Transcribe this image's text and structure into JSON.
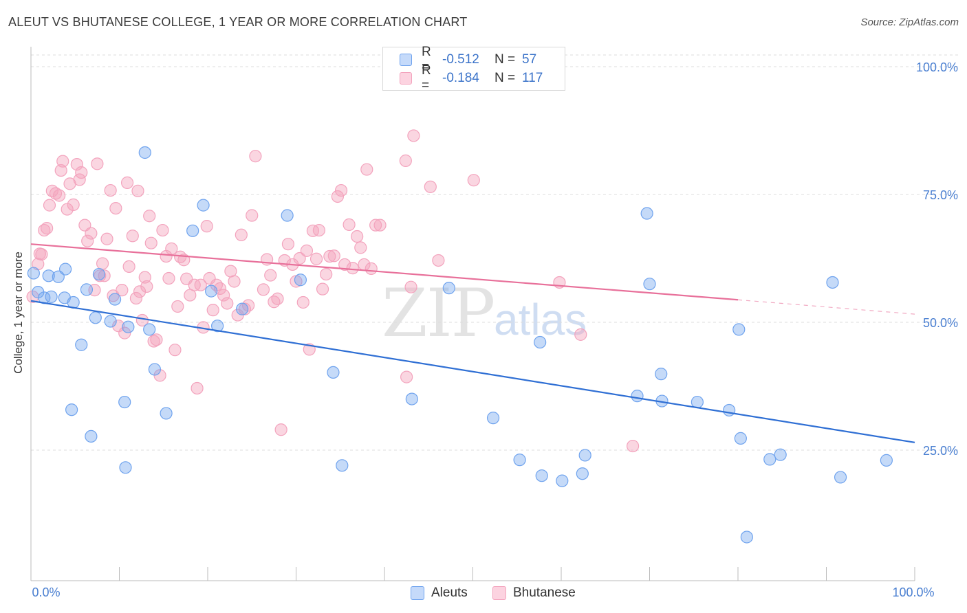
{
  "title": "ALEUT VS BHUTANESE COLLEGE, 1 YEAR OR MORE CORRELATION CHART",
  "source": "Source: ZipAtlas.com",
  "watermark_main": "ZIP",
  "watermark_sub": "atlas",
  "legend": {
    "rows": [
      {
        "r_label": "R =",
        "r_value": "-0.512",
        "n_label": "N =",
        "n_value": "57",
        "color": "#7aaaf0"
      },
      {
        "r_label": "R =",
        "r_value": "-0.184",
        "n_label": "N =",
        "n_value": "117",
        "color": "#f4a0bb"
      }
    ]
  },
  "bottom_legend": [
    {
      "label": "Aleuts",
      "color": "#7aaaf0"
    },
    {
      "label": "Bhutanese",
      "color": "#f4a0bb"
    }
  ],
  "chart_data": {
    "type": "scatter",
    "title": "ALEUT VS BHUTANESE COLLEGE, 1 YEAR OR MORE CORRELATION CHART",
    "xlabel": "",
    "ylabel": "College, 1 year or more",
    "xlim": [
      0,
      100
    ],
    "ylim": [
      0,
      105
    ],
    "x_tick_labels": [
      "0.0%",
      "100.0%"
    ],
    "y_ticks": [
      25,
      50,
      75,
      100
    ],
    "y_tick_labels": [
      "25.0%",
      "50.0%",
      "75.0%",
      "100.0%"
    ],
    "grid": true,
    "legend_position": "top-center",
    "colors": {
      "aleuts": "#6fa3ee",
      "bhutanese": "#f3a3bd",
      "aleuts_line": "#2f6fd4",
      "bhutanese_line": "#e8709a"
    },
    "series": [
      {
        "name": "Aleuts",
        "trend": {
          "x0": 0,
          "y0": 54.2,
          "x1": 100,
          "y1": 26.5
        },
        "points": [
          [
            0.3,
            59.6
          ],
          [
            0.8,
            55.9
          ],
          [
            1.5,
            54.8
          ],
          [
            2.0,
            59.1
          ],
          [
            2.3,
            55.0
          ],
          [
            3.1,
            58.9
          ],
          [
            3.8,
            54.8
          ],
          [
            3.9,
            60.4
          ],
          [
            4.6,
            32.9
          ],
          [
            4.8,
            53.9
          ],
          [
            5.7,
            45.6
          ],
          [
            6.3,
            56.4
          ],
          [
            6.8,
            27.7
          ],
          [
            7.3,
            50.9
          ],
          [
            7.7,
            59.4
          ],
          [
            9.0,
            50.2
          ],
          [
            9.5,
            54.5
          ],
          [
            10.6,
            34.4
          ],
          [
            10.7,
            21.6
          ],
          [
            11.0,
            49.1
          ],
          [
            12.9,
            83.2
          ],
          [
            13.4,
            48.6
          ],
          [
            14.0,
            40.8
          ],
          [
            15.3,
            32.2
          ],
          [
            18.3,
            67.9
          ],
          [
            19.5,
            72.9
          ],
          [
            20.4,
            56.1
          ],
          [
            21.1,
            49.3
          ],
          [
            23.9,
            52.6
          ],
          [
            29.0,
            70.9
          ],
          [
            30.5,
            58.3
          ],
          [
            34.2,
            40.2
          ],
          [
            35.2,
            22.0
          ],
          [
            43.1,
            35.0
          ],
          [
            47.3,
            56.7
          ],
          [
            52.3,
            31.3
          ],
          [
            55.3,
            23.1
          ],
          [
            57.6,
            46.1
          ],
          [
            57.8,
            20.0
          ],
          [
            60.1,
            19.0
          ],
          [
            62.4,
            20.4
          ],
          [
            62.7,
            24.0
          ],
          [
            68.6,
            35.6
          ],
          [
            69.7,
            71.3
          ],
          [
            70.0,
            57.5
          ],
          [
            71.3,
            39.9
          ],
          [
            71.4,
            34.6
          ],
          [
            75.4,
            34.4
          ],
          [
            79.0,
            32.8
          ],
          [
            80.1,
            48.6
          ],
          [
            80.3,
            27.3
          ],
          [
            81.0,
            8.0
          ],
          [
            83.6,
            23.2
          ],
          [
            84.8,
            24.1
          ],
          [
            90.7,
            57.8
          ],
          [
            91.6,
            19.7
          ],
          [
            96.8,
            23.0
          ]
        ]
      },
      {
        "name": "Bhutanese",
        "trend": {
          "x0": 0,
          "y0": 65.3,
          "x1": 80,
          "y1": 54.4,
          "dash_x1": 100,
          "dash_y1": 51.6
        },
        "points": [
          [
            0.2,
            55.0
          ],
          [
            0.8,
            61.4
          ],
          [
            1.0,
            63.4
          ],
          [
            1.2,
            63.3
          ],
          [
            1.5,
            68.0
          ],
          [
            1.8,
            68.4
          ],
          [
            2.1,
            72.9
          ],
          [
            2.4,
            75.7
          ],
          [
            2.8,
            75.2
          ],
          [
            3.2,
            74.8
          ],
          [
            3.4,
            79.7
          ],
          [
            3.6,
            81.5
          ],
          [
            4.1,
            72.1
          ],
          [
            4.4,
            77.1
          ],
          [
            4.8,
            73.0
          ],
          [
            5.2,
            80.9
          ],
          [
            5.5,
            77.9
          ],
          [
            5.7,
            79.3
          ],
          [
            6.1,
            69.0
          ],
          [
            6.4,
            65.9
          ],
          [
            6.8,
            67.4
          ],
          [
            7.2,
            56.3
          ],
          [
            7.5,
            81.0
          ],
          [
            7.8,
            59.1
          ],
          [
            8.1,
            61.5
          ],
          [
            8.3,
            59.1
          ],
          [
            8.6,
            66.3
          ],
          [
            9.0,
            75.8
          ],
          [
            9.3,
            55.2
          ],
          [
            9.6,
            72.3
          ],
          [
            9.9,
            49.3
          ],
          [
            10.3,
            56.3
          ],
          [
            10.6,
            47.9
          ],
          [
            10.9,
            77.3
          ],
          [
            11.1,
            60.9
          ],
          [
            11.5,
            66.9
          ],
          [
            11.9,
            54.7
          ],
          [
            12.1,
            75.7
          ],
          [
            12.3,
            56.0
          ],
          [
            12.6,
            50.4
          ],
          [
            12.9,
            58.8
          ],
          [
            13.1,
            57.0
          ],
          [
            13.4,
            70.8
          ],
          [
            13.6,
            65.5
          ],
          [
            13.9,
            46.3
          ],
          [
            14.2,
            46.6
          ],
          [
            14.6,
            39.6
          ],
          [
            14.9,
            68.0
          ],
          [
            15.3,
            62.9
          ],
          [
            15.6,
            58.6
          ],
          [
            15.9,
            64.4
          ],
          [
            16.3,
            44.6
          ],
          [
            16.6,
            53.1
          ],
          [
            16.9,
            62.8
          ],
          [
            17.3,
            62.2
          ],
          [
            17.6,
            58.5
          ],
          [
            18.0,
            55.3
          ],
          [
            18.5,
            57.3
          ],
          [
            18.8,
            37.1
          ],
          [
            19.2,
            57.3
          ],
          [
            19.5,
            49.0
          ],
          [
            19.9,
            68.8
          ],
          [
            20.2,
            58.6
          ],
          [
            20.6,
            52.4
          ],
          [
            21.0,
            57.3
          ],
          [
            21.4,
            56.6
          ],
          [
            21.8,
            55.3
          ],
          [
            22.2,
            53.7
          ],
          [
            22.6,
            60.0
          ],
          [
            23.0,
            58.0
          ],
          [
            23.4,
            51.4
          ],
          [
            23.8,
            67.1
          ],
          [
            24.2,
            52.6
          ],
          [
            24.6,
            53.3
          ],
          [
            25.0,
            70.9
          ],
          [
            25.4,
            82.5
          ],
          [
            26.3,
            56.4
          ],
          [
            26.7,
            62.3
          ],
          [
            27.1,
            59.2
          ],
          [
            27.5,
            54.0
          ],
          [
            27.9,
            54.6
          ],
          [
            28.3,
            29.0
          ],
          [
            28.7,
            62.1
          ],
          [
            29.1,
            65.3
          ],
          [
            29.6,
            61.3
          ],
          [
            30.0,
            58.0
          ],
          [
            30.4,
            62.5
          ],
          [
            30.8,
            53.9
          ],
          [
            31.2,
            64.0
          ],
          [
            31.5,
            44.7
          ],
          [
            31.9,
            67.9
          ],
          [
            32.3,
            62.4
          ],
          [
            32.6,
            68.0
          ],
          [
            33.0,
            56.5
          ],
          [
            33.4,
            59.4
          ],
          [
            33.8,
            62.9
          ],
          [
            34.3,
            63.0
          ],
          [
            34.7,
            74.6
          ],
          [
            35.1,
            75.8
          ],
          [
            35.5,
            61.3
          ],
          [
            36.0,
            69.1
          ],
          [
            36.4,
            60.6
          ],
          [
            36.9,
            66.8
          ],
          [
            37.3,
            64.6
          ],
          [
            37.7,
            61.3
          ],
          [
            38.0,
            79.9
          ],
          [
            38.5,
            60.5
          ],
          [
            39.0,
            69.0
          ],
          [
            39.5,
            69.0
          ],
          [
            43.0,
            56.9
          ],
          [
            42.4,
            81.6
          ],
          [
            43.3,
            86.5
          ],
          [
            42.5,
            39.3
          ],
          [
            45.2,
            76.5
          ],
          [
            46.1,
            62.1
          ],
          [
            50.1,
            77.8
          ],
          [
            59.8,
            57.8
          ],
          [
            62.2,
            47.6
          ],
          [
            68.1,
            25.8
          ]
        ]
      }
    ]
  }
}
